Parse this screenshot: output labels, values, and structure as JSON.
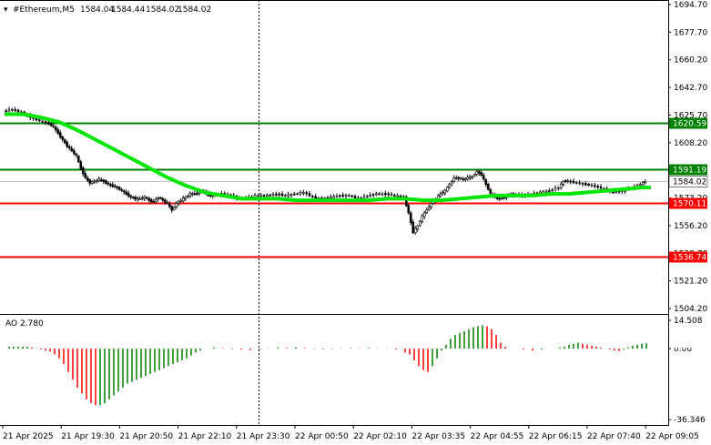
{
  "chart_data": {
    "type": "candlestick",
    "title": "#Ethereum,M5",
    "ohlc": [
      "1584.04",
      "1584.44",
      "1584.02",
      "1584.02"
    ],
    "y_ticks": [
      "1694.70",
      "1677.70",
      "1660.20",
      "1642.70",
      "1625.70",
      "1608.20",
      "1590.70",
      "1573.20",
      "1556.20",
      "1538.70",
      "1521.20",
      "1504.20"
    ],
    "ylim": [
      1504.2,
      1694.7
    ],
    "x_ticks": [
      "21 Apr 2025",
      "21 Apr 19:30",
      "21 Apr 20:50",
      "21 Apr 22:10",
      "21 Apr 23:30",
      "22 Apr 00:50",
      "22 Apr 02:10",
      "22 Apr 03:35",
      "22 Apr 04:55",
      "22 Apr 06:15",
      "22 Apr 07:40",
      "22 Apr 09:05"
    ],
    "levels": [
      {
        "price": 1620.59,
        "label": "1620.59",
        "color": "#008000"
      },
      {
        "price": 1591.19,
        "label": "1591.19",
        "color": "#008000"
      },
      {
        "price": 1570.11,
        "label": "1570.11",
        "color": "#ff0000"
      },
      {
        "price": 1536.74,
        "label": "1536.74",
        "color": "#ff0000"
      }
    ],
    "current_price": {
      "value": 1584.02,
      "label": "1584.02"
    },
    "price_series": [
      [
        0,
        1628
      ],
      [
        10,
        1629
      ],
      [
        20,
        1627
      ],
      [
        30,
        1624
      ],
      [
        40,
        1622
      ],
      [
        50,
        1620
      ],
      [
        55,
        1618
      ],
      [
        60,
        1614
      ],
      [
        65,
        1610
      ],
      [
        70,
        1606
      ],
      [
        75,
        1603
      ],
      [
        80,
        1600
      ],
      [
        85,
        1592
      ],
      [
        90,
        1586
      ],
      [
        95,
        1583
      ],
      [
        100,
        1584
      ],
      [
        105,
        1585
      ],
      [
        110,
        1584
      ],
      [
        115,
        1582
      ],
      [
        120,
        1581
      ],
      [
        125,
        1580
      ],
      [
        130,
        1578
      ],
      [
        135,
        1576
      ],
      [
        140,
        1574
      ],
      [
        145,
        1573
      ],
      [
        150,
        1573
      ],
      [
        155,
        1574
      ],
      [
        160,
        1572
      ],
      [
        165,
        1571
      ],
      [
        170,
        1574
      ],
      [
        175,
        1572
      ],
      [
        180,
        1570
      ],
      [
        185,
        1566
      ],
      [
        190,
        1570
      ],
      [
        195,
        1572
      ],
      [
        200,
        1574
      ],
      [
        205,
        1576
      ],
      [
        210,
        1576
      ],
      [
        215,
        1577
      ],
      [
        220,
        1578
      ],
      [
        225,
        1575
      ],
      [
        230,
        1575
      ],
      [
        240,
        1576
      ],
      [
        250,
        1575
      ],
      [
        260,
        1573
      ],
      [
        270,
        1574
      ],
      [
        280,
        1575
      ],
      [
        290,
        1575
      ],
      [
        300,
        1576
      ],
      [
        310,
        1575
      ],
      [
        320,
        1576
      ],
      [
        330,
        1577
      ],
      [
        340,
        1574
      ],
      [
        350,
        1573
      ],
      [
        360,
        1574
      ],
      [
        370,
        1575
      ],
      [
        380,
        1575
      ],
      [
        390,
        1573
      ],
      [
        400,
        1575
      ],
      [
        410,
        1576
      ],
      [
        420,
        1576
      ],
      [
        430,
        1575
      ],
      [
        440,
        1574
      ],
      [
        445,
        1564
      ],
      [
        450,
        1552
      ],
      [
        455,
        1556
      ],
      [
        460,
        1562
      ],
      [
        465,
        1566
      ],
      [
        470,
        1570
      ],
      [
        475,
        1573
      ],
      [
        480,
        1576
      ],
      [
        485,
        1578
      ],
      [
        490,
        1582
      ],
      [
        495,
        1586
      ],
      [
        500,
        1586
      ],
      [
        505,
        1585
      ],
      [
        510,
        1586
      ],
      [
        515,
        1587
      ],
      [
        520,
        1590
      ],
      [
        525,
        1588
      ],
      [
        530,
        1582
      ],
      [
        535,
        1576
      ],
      [
        540,
        1574
      ],
      [
        545,
        1573
      ],
      [
        550,
        1574
      ],
      [
        555,
        1575
      ],
      [
        560,
        1576
      ],
      [
        570,
        1575
      ],
      [
        580,
        1576
      ],
      [
        590,
        1577
      ],
      [
        600,
        1578
      ],
      [
        610,
        1580
      ],
      [
        615,
        1584
      ],
      [
        620,
        1584
      ],
      [
        630,
        1583
      ],
      [
        640,
        1582
      ],
      [
        650,
        1581
      ],
      [
        660,
        1579
      ],
      [
        670,
        1577
      ],
      [
        680,
        1578
      ],
      [
        690,
        1580
      ],
      [
        700,
        1582
      ],
      [
        705,
        1584
      ]
    ],
    "ma_series": [
      [
        0,
        1626
      ],
      [
        20,
        1626
      ],
      [
        40,
        1624
      ],
      [
        60,
        1621
      ],
      [
        80,
        1616
      ],
      [
        100,
        1610
      ],
      [
        120,
        1604
      ],
      [
        140,
        1598
      ],
      [
        160,
        1592
      ],
      [
        180,
        1586
      ],
      [
        200,
        1581
      ],
      [
        220,
        1577
      ],
      [
        240,
        1575
      ],
      [
        260,
        1573
      ],
      [
        280,
        1573
      ],
      [
        300,
        1573
      ],
      [
        320,
        1572
      ],
      [
        340,
        1572
      ],
      [
        360,
        1572
      ],
      [
        380,
        1572
      ],
      [
        400,
        1572
      ],
      [
        420,
        1573
      ],
      [
        440,
        1573
      ],
      [
        460,
        1572
      ],
      [
        480,
        1572
      ],
      [
        500,
        1573
      ],
      [
        520,
        1574
      ],
      [
        540,
        1575
      ],
      [
        560,
        1575
      ],
      [
        580,
        1575
      ],
      [
        600,
        1576
      ],
      [
        620,
        1576
      ],
      [
        640,
        1577
      ],
      [
        660,
        1578
      ],
      [
        680,
        1579
      ],
      [
        700,
        1580
      ],
      [
        710,
        1580
      ]
    ],
    "ao": {
      "label": "AO 2.780",
      "y_ticks": [
        "14.508",
        "0.00",
        "-36.346"
      ],
      "ylim": [
        -36.346,
        14.508
      ],
      "last": 2.78,
      "values": [
        [
          5,
          1
        ],
        [
          10,
          1
        ],
        [
          15,
          1
        ],
        [
          20,
          1
        ],
        [
          25,
          1
        ],
        [
          30,
          0.5
        ],
        [
          35,
          0
        ],
        [
          40,
          -0.5
        ],
        [
          45,
          -1
        ],
        [
          50,
          -1.5
        ],
        [
          55,
          -3
        ],
        [
          60,
          -5
        ],
        [
          65,
          -8
        ],
        [
          70,
          -12
        ],
        [
          75,
          -16
        ],
        [
          80,
          -20
        ],
        [
          85,
          -23
        ],
        [
          90,
          -26
        ],
        [
          95,
          -28
        ],
        [
          100,
          -29
        ],
        [
          105,
          -29
        ],
        [
          110,
          -28
        ],
        [
          115,
          -26
        ],
        [
          120,
          -24
        ],
        [
          125,
          -22
        ],
        [
          130,
          -20
        ],
        [
          135,
          -18
        ],
        [
          140,
          -17
        ],
        [
          145,
          -16
        ],
        [
          150,
          -15
        ],
        [
          155,
          -14
        ],
        [
          160,
          -13
        ],
        [
          165,
          -12
        ],
        [
          170,
          -11
        ],
        [
          175,
          -10
        ],
        [
          180,
          -9
        ],
        [
          185,
          -8
        ],
        [
          190,
          -7
        ],
        [
          195,
          -6
        ],
        [
          200,
          -5
        ],
        [
          205,
          -3.5
        ],
        [
          210,
          -2
        ],
        [
          215,
          -1
        ],
        [
          220,
          0
        ],
        [
          230,
          0.5
        ],
        [
          240,
          0.3
        ],
        [
          250,
          -0.3
        ],
        [
          260,
          -0.5
        ],
        [
          270,
          -0.8
        ],
        [
          280,
          -0.5
        ],
        [
          290,
          0.2
        ],
        [
          300,
          0.6
        ],
        [
          310,
          0.4
        ],
        [
          320,
          0.6
        ],
        [
          330,
          0.3
        ],
        [
          340,
          -0.2
        ],
        [
          350,
          -0.3
        ],
        [
          360,
          -0.2
        ],
        [
          370,
          0.2
        ],
        [
          380,
          0.3
        ],
        [
          390,
          0.2
        ],
        [
          400,
          0.4
        ],
        [
          410,
          0.2
        ],
        [
          420,
          0.1
        ],
        [
          430,
          -0.5
        ],
        [
          440,
          -2
        ],
        [
          445,
          -3
        ],
        [
          450,
          -6
        ],
        [
          455,
          -9
        ],
        [
          460,
          -11
        ],
        [
          465,
          -12
        ],
        [
          470,
          -9
        ],
        [
          475,
          -5
        ],
        [
          480,
          -1
        ],
        [
          485,
          2
        ],
        [
          490,
          5
        ],
        [
          495,
          7
        ],
        [
          500,
          8
        ],
        [
          505,
          9
        ],
        [
          510,
          10
        ],
        [
          515,
          11
        ],
        [
          520,
          11.5
        ],
        [
          525,
          12
        ],
        [
          530,
          11.5
        ],
        [
          535,
          10
        ],
        [
          540,
          7
        ],
        [
          545,
          3
        ],
        [
          550,
          1
        ],
        [
          560,
          0
        ],
        [
          570,
          -0.5
        ],
        [
          580,
          -1
        ],
        [
          590,
          -0.5
        ],
        [
          600,
          0
        ],
        [
          610,
          0.5
        ],
        [
          615,
          1
        ],
        [
          620,
          2
        ],
        [
          625,
          2.5
        ],
        [
          630,
          3
        ],
        [
          635,
          2.5
        ],
        [
          640,
          2
        ],
        [
          645,
          1.5
        ],
        [
          650,
          1
        ],
        [
          655,
          0.5
        ],
        [
          660,
          0
        ],
        [
          665,
          -0.5
        ],
        [
          670,
          -1
        ],
        [
          675,
          -1.2
        ],
        [
          680,
          -0.5
        ],
        [
          685,
          0.5
        ],
        [
          690,
          1.5
        ],
        [
          695,
          2
        ],
        [
          700,
          2.5
        ],
        [
          705,
          2.78
        ]
      ]
    },
    "colors": {
      "ma": "#00e600",
      "candle_up": "#ffffff",
      "candle_down": "#000000",
      "ao_up": "#008000",
      "ao_down": "#ff0000"
    }
  }
}
